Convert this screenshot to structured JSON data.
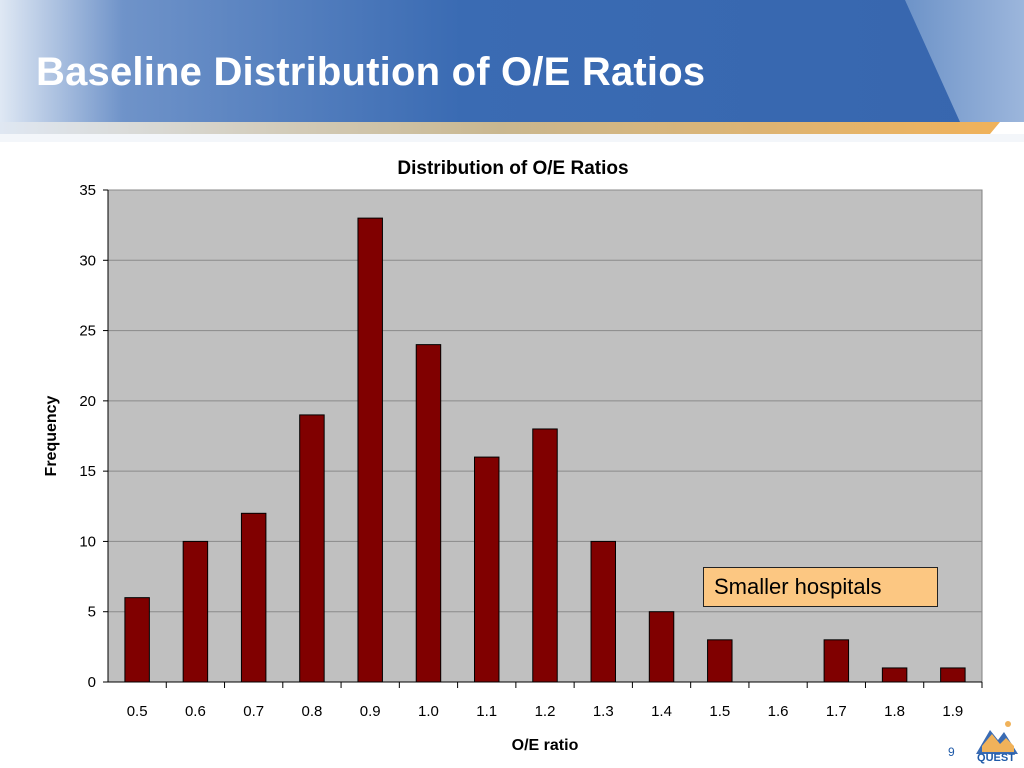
{
  "slide": {
    "title": "Baseline Distribution of O/E Ratios",
    "page_number": "9",
    "logo_text": "QUEST"
  },
  "callout": {
    "text": "Smaller hospitals"
  },
  "colors": {
    "header_blue": "#3a6bb3",
    "accent_orange": "#f0b25a",
    "bar_fill": "#800000",
    "plot_bg": "#c0c0c0",
    "callout_fill": "#fcc782"
  },
  "chart_data": {
    "type": "bar",
    "title": "Distribution of O/E Ratios",
    "xlabel": "O/E ratio",
    "ylabel": "Frequency",
    "categories": [
      "0.5",
      "0.6",
      "0.7",
      "0.8",
      "0.9",
      "1.0",
      "1.1",
      "1.2",
      "1.3",
      "1.4",
      "1.5",
      "1.6",
      "1.7",
      "1.8",
      "1.9"
    ],
    "values": [
      6,
      10,
      12,
      19,
      33,
      24,
      16,
      18,
      10,
      5,
      3,
      0,
      3,
      1,
      1
    ],
    "ylim": [
      0,
      35
    ],
    "yticks": [
      0,
      5,
      10,
      15,
      20,
      25,
      30,
      35
    ],
    "grid": true,
    "legend": "none"
  }
}
